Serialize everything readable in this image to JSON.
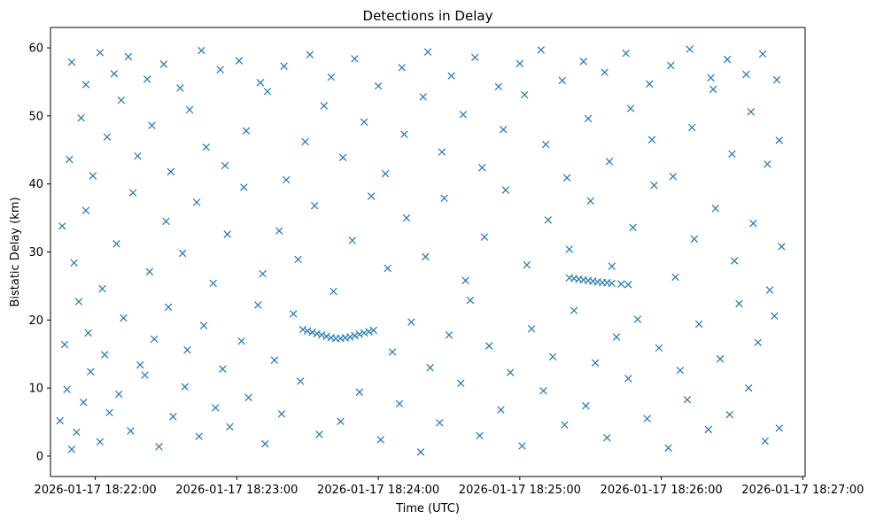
{
  "chart_data": {
    "type": "scatter",
    "title": "Detections in Delay",
    "xlabel": "Time (UTC)",
    "ylabel": "Bistatic Delay (km)",
    "marker": "x",
    "color": "#1f77b4",
    "grid": false,
    "legend": "none",
    "xlim": [
      "2026-01-17 18:21:41",
      "2026-01-17 18:27:01"
    ],
    "ylim": [
      -3,
      63
    ],
    "x_ticks": [
      "2026-01-17 18:22:00",
      "2026-01-17 18:23:00",
      "2026-01-17 18:24:00",
      "2026-01-17 18:25:00",
      "2026-01-17 18:26:00",
      "2026-01-17 18:27:00"
    ],
    "y_ticks": [
      "0",
      "10",
      "20",
      "30",
      "40",
      "50",
      "60"
    ],
    "tracks": [
      {
        "points": [
          [
            "2026-01-17 18:23:28",
            18.6
          ],
          [
            "2026-01-17 18:23:30",
            18.4
          ],
          [
            "2026-01-17 18:23:32",
            18.2
          ],
          [
            "2026-01-17 18:23:34",
            18.0
          ],
          [
            "2026-01-17 18:23:36",
            17.8
          ],
          [
            "2026-01-17 18:23:38",
            17.6
          ],
          [
            "2026-01-17 18:23:40",
            17.4
          ],
          [
            "2026-01-17 18:23:42",
            17.3
          ],
          [
            "2026-01-17 18:23:44",
            17.3
          ],
          [
            "2026-01-17 18:23:46",
            17.4
          ],
          [
            "2026-01-17 18:23:48",
            17.5
          ],
          [
            "2026-01-17 18:23:50",
            17.7
          ],
          [
            "2026-01-17 18:23:52",
            17.9
          ],
          [
            "2026-01-17 18:23:54",
            18.1
          ],
          [
            "2026-01-17 18:23:56",
            18.3
          ],
          [
            "2026-01-17 18:23:58",
            18.5
          ]
        ]
      },
      {
        "points": [
          [
            "2026-01-17 18:25:21",
            26.2
          ],
          [
            "2026-01-17 18:25:23",
            26.1
          ],
          [
            "2026-01-17 18:25:25",
            26.0
          ],
          [
            "2026-01-17 18:25:27",
            25.9
          ],
          [
            "2026-01-17 18:25:29",
            25.8
          ],
          [
            "2026-01-17 18:25:31",
            25.7
          ],
          [
            "2026-01-17 18:25:33",
            25.6
          ],
          [
            "2026-01-17 18:25:35",
            25.5
          ],
          [
            "2026-01-17 18:25:37",
            25.5
          ],
          [
            "2026-01-17 18:25:39",
            25.4
          ],
          [
            "2026-01-17 18:25:43",
            25.3
          ],
          [
            "2026-01-17 18:25:46",
            25.2
          ]
        ]
      }
    ],
    "scatter_points": [
      [
        "2026-01-17 18:21:45",
        5.2
      ],
      [
        "2026-01-17 18:21:48",
        9.8
      ],
      [
        "2026-01-17 18:21:50",
        1.0
      ],
      [
        "2026-01-17 18:21:52",
        3.5
      ],
      [
        "2026-01-17 18:21:55",
        7.9
      ],
      [
        "2026-01-17 18:21:58",
        12.4
      ],
      [
        "2026-01-17 18:22:02",
        2.1
      ],
      [
        "2026-01-17 18:22:06",
        6.4
      ],
      [
        "2026-01-17 18:22:10",
        9.1
      ],
      [
        "2026-01-17 18:22:15",
        3.7
      ],
      [
        "2026-01-17 18:22:21",
        11.9
      ],
      [
        "2026-01-17 18:22:27",
        1.4
      ],
      [
        "2026-01-17 18:22:33",
        5.8
      ],
      [
        "2026-01-17 18:22:38",
        10.2
      ],
      [
        "2026-01-17 18:22:44",
        2.9
      ],
      [
        "2026-01-17 18:22:51",
        7.1
      ],
      [
        "2026-01-17 18:22:57",
        4.3
      ],
      [
        "2026-01-17 18:23:05",
        8.6
      ],
      [
        "2026-01-17 18:23:12",
        1.8
      ],
      [
        "2026-01-17 18:23:19",
        6.2
      ],
      [
        "2026-01-17 18:23:27",
        11.0
      ],
      [
        "2026-01-17 18:23:35",
        3.2
      ],
      [
        "2026-01-17 18:23:44",
        5.1
      ],
      [
        "2026-01-17 18:23:52",
        9.4
      ],
      [
        "2026-01-17 18:24:01",
        2.4
      ],
      [
        "2026-01-17 18:24:09",
        7.7
      ],
      [
        "2026-01-17 18:24:18",
        0.6
      ],
      [
        "2026-01-17 18:24:26",
        4.9
      ],
      [
        "2026-01-17 18:24:35",
        10.7
      ],
      [
        "2026-01-17 18:24:43",
        3.0
      ],
      [
        "2026-01-17 18:24:52",
        6.8
      ],
      [
        "2026-01-17 18:25:01",
        1.5
      ],
      [
        "2026-01-17 18:25:10",
        9.6
      ],
      [
        "2026-01-17 18:25:19",
        4.6
      ],
      [
        "2026-01-17 18:25:28",
        7.4
      ],
      [
        "2026-01-17 18:25:37",
        2.7
      ],
      [
        "2026-01-17 18:25:46",
        11.4
      ],
      [
        "2026-01-17 18:25:54",
        5.5
      ],
      [
        "2026-01-17 18:26:03",
        1.2
      ],
      [
        "2026-01-17 18:26:11",
        8.3
      ],
      [
        "2026-01-17 18:26:20",
        3.9
      ],
      [
        "2026-01-17 18:26:29",
        6.1
      ],
      [
        "2026-01-17 18:26:37",
        10.0
      ],
      [
        "2026-01-17 18:26:44",
        2.2
      ],
      [
        "2026-01-17 18:26:50",
        4.1
      ],
      [
        "2026-01-17 18:21:47",
        16.4
      ],
      [
        "2026-01-17 18:21:53",
        22.7
      ],
      [
        "2026-01-17 18:21:57",
        18.1
      ],
      [
        "2026-01-17 18:22:04",
        14.9
      ],
      [
        "2026-01-17 18:22:12",
        20.3
      ],
      [
        "2026-01-17 18:22:19",
        13.4
      ],
      [
        "2026-01-17 18:22:25",
        17.2
      ],
      [
        "2026-01-17 18:22:31",
        21.9
      ],
      [
        "2026-01-17 18:22:39",
        15.6
      ],
      [
        "2026-01-17 18:22:46",
        19.2
      ],
      [
        "2026-01-17 18:22:54",
        12.8
      ],
      [
        "2026-01-17 18:23:02",
        16.9
      ],
      [
        "2026-01-17 18:23:09",
        22.2
      ],
      [
        "2026-01-17 18:23:16",
        14.1
      ],
      [
        "2026-01-17 18:23:24",
        20.9
      ],
      [
        "2026-01-17 18:24:06",
        15.3
      ],
      [
        "2026-01-17 18:24:14",
        19.7
      ],
      [
        "2026-01-17 18:24:22",
        13.0
      ],
      [
        "2026-01-17 18:24:30",
        17.8
      ],
      [
        "2026-01-17 18:24:39",
        22.9
      ],
      [
        "2026-01-17 18:24:47",
        16.2
      ],
      [
        "2026-01-17 18:24:56",
        12.3
      ],
      [
        "2026-01-17 18:25:05",
        18.7
      ],
      [
        "2026-01-17 18:25:14",
        14.6
      ],
      [
        "2026-01-17 18:25:23",
        21.4
      ],
      [
        "2026-01-17 18:25:32",
        13.7
      ],
      [
        "2026-01-17 18:25:41",
        17.5
      ],
      [
        "2026-01-17 18:25:50",
        20.1
      ],
      [
        "2026-01-17 18:25:59",
        15.9
      ],
      [
        "2026-01-17 18:26:08",
        12.6
      ],
      [
        "2026-01-17 18:26:16",
        19.4
      ],
      [
        "2026-01-17 18:26:25",
        14.3
      ],
      [
        "2026-01-17 18:26:33",
        22.4
      ],
      [
        "2026-01-17 18:26:41",
        16.7
      ],
      [
        "2026-01-17 18:26:48",
        20.6
      ],
      [
        "2026-01-17 18:21:46",
        33.8
      ],
      [
        "2026-01-17 18:21:51",
        28.4
      ],
      [
        "2026-01-17 18:21:56",
        36.1
      ],
      [
        "2026-01-17 18:22:03",
        24.6
      ],
      [
        "2026-01-17 18:22:09",
        31.2
      ],
      [
        "2026-01-17 18:22:16",
        38.7
      ],
      [
        "2026-01-17 18:22:23",
        27.1
      ],
      [
        "2026-01-17 18:22:30",
        34.5
      ],
      [
        "2026-01-17 18:22:37",
        29.8
      ],
      [
        "2026-01-17 18:22:43",
        37.3
      ],
      [
        "2026-01-17 18:22:50",
        25.4
      ],
      [
        "2026-01-17 18:22:56",
        32.6
      ],
      [
        "2026-01-17 18:23:03",
        39.5
      ],
      [
        "2026-01-17 18:23:11",
        26.8
      ],
      [
        "2026-01-17 18:23:18",
        33.1
      ],
      [
        "2026-01-17 18:23:26",
        28.9
      ],
      [
        "2026-01-17 18:23:33",
        36.8
      ],
      [
        "2026-01-17 18:23:41",
        24.2
      ],
      [
        "2026-01-17 18:23:49",
        31.7
      ],
      [
        "2026-01-17 18:23:57",
        38.2
      ],
      [
        "2026-01-17 18:24:04",
        27.6
      ],
      [
        "2026-01-17 18:24:12",
        35.0
      ],
      [
        "2026-01-17 18:24:20",
        29.3
      ],
      [
        "2026-01-17 18:24:28",
        37.9
      ],
      [
        "2026-01-17 18:24:37",
        25.8
      ],
      [
        "2026-01-17 18:24:45",
        32.2
      ],
      [
        "2026-01-17 18:24:54",
        39.1
      ],
      [
        "2026-01-17 18:25:03",
        28.1
      ],
      [
        "2026-01-17 18:25:12",
        34.7
      ],
      [
        "2026-01-17 18:25:21",
        30.4
      ],
      [
        "2026-01-17 18:25:30",
        37.5
      ],
      [
        "2026-01-17 18:25:39",
        27.9
      ],
      [
        "2026-01-17 18:25:48",
        33.6
      ],
      [
        "2026-01-17 18:25:57",
        39.8
      ],
      [
        "2026-01-17 18:26:06",
        26.3
      ],
      [
        "2026-01-17 18:26:14",
        31.9
      ],
      [
        "2026-01-17 18:26:23",
        36.4
      ],
      [
        "2026-01-17 18:26:31",
        28.7
      ],
      [
        "2026-01-17 18:26:39",
        34.2
      ],
      [
        "2026-01-17 18:26:46",
        24.4
      ],
      [
        "2026-01-17 18:26:51",
        30.8
      ],
      [
        "2026-01-17 18:21:49",
        43.6
      ],
      [
        "2026-01-17 18:21:54",
        49.7
      ],
      [
        "2026-01-17 18:21:59",
        41.2
      ],
      [
        "2026-01-17 18:22:05",
        46.9
      ],
      [
        "2026-01-17 18:22:11",
        52.3
      ],
      [
        "2026-01-17 18:22:18",
        44.1
      ],
      [
        "2026-01-17 18:22:24",
        48.6
      ],
      [
        "2026-01-17 18:22:32",
        41.8
      ],
      [
        "2026-01-17 18:22:40",
        50.9
      ],
      [
        "2026-01-17 18:22:47",
        45.4
      ],
      [
        "2026-01-17 18:22:55",
        42.7
      ],
      [
        "2026-01-17 18:23:04",
        47.8
      ],
      [
        "2026-01-17 18:23:13",
        53.6
      ],
      [
        "2026-01-17 18:23:21",
        40.6
      ],
      [
        "2026-01-17 18:23:29",
        46.2
      ],
      [
        "2026-01-17 18:23:37",
        51.5
      ],
      [
        "2026-01-17 18:23:45",
        43.9
      ],
      [
        "2026-01-17 18:23:54",
        49.1
      ],
      [
        "2026-01-17 18:24:03",
        41.5
      ],
      [
        "2026-01-17 18:24:11",
        47.3
      ],
      [
        "2026-01-17 18:24:19",
        52.8
      ],
      [
        "2026-01-17 18:24:27",
        44.7
      ],
      [
        "2026-01-17 18:24:36",
        50.2
      ],
      [
        "2026-01-17 18:24:44",
        42.4
      ],
      [
        "2026-01-17 18:24:53",
        48.0
      ],
      [
        "2026-01-17 18:25:02",
        53.1
      ],
      [
        "2026-01-17 18:25:11",
        45.8
      ],
      [
        "2026-01-17 18:25:20",
        40.9
      ],
      [
        "2026-01-17 18:25:29",
        49.6
      ],
      [
        "2026-01-17 18:25:38",
        43.3
      ],
      [
        "2026-01-17 18:25:47",
        51.1
      ],
      [
        "2026-01-17 18:25:56",
        46.5
      ],
      [
        "2026-01-17 18:26:05",
        41.1
      ],
      [
        "2026-01-17 18:26:13",
        48.3
      ],
      [
        "2026-01-17 18:26:22",
        53.9
      ],
      [
        "2026-01-17 18:26:30",
        44.4
      ],
      [
        "2026-01-17 18:26:38",
        50.6
      ],
      [
        "2026-01-17 18:26:45",
        42.9
      ],
      [
        "2026-01-17 18:26:50",
        46.4
      ],
      [
        "2026-01-17 18:21:50",
        57.9
      ],
      [
        "2026-01-17 18:21:56",
        54.6
      ],
      [
        "2026-01-17 18:22:02",
        59.3
      ],
      [
        "2026-01-17 18:22:08",
        56.2
      ],
      [
        "2026-01-17 18:22:14",
        58.7
      ],
      [
        "2026-01-17 18:22:22",
        55.4
      ],
      [
        "2026-01-17 18:22:29",
        57.6
      ],
      [
        "2026-01-17 18:22:36",
        54.1
      ],
      [
        "2026-01-17 18:22:45",
        59.6
      ],
      [
        "2026-01-17 18:22:53",
        56.8
      ],
      [
        "2026-01-17 18:23:01",
        58.1
      ],
      [
        "2026-01-17 18:23:10",
        54.9
      ],
      [
        "2026-01-17 18:23:20",
        57.3
      ],
      [
        "2026-01-17 18:23:31",
        59.0
      ],
      [
        "2026-01-17 18:23:40",
        55.7
      ],
      [
        "2026-01-17 18:23:50",
        58.4
      ],
      [
        "2026-01-17 18:24:00",
        54.4
      ],
      [
        "2026-01-17 18:24:10",
        57.1
      ],
      [
        "2026-01-17 18:24:21",
        59.4
      ],
      [
        "2026-01-17 18:24:31",
        55.9
      ],
      [
        "2026-01-17 18:24:41",
        58.6
      ],
      [
        "2026-01-17 18:24:51",
        54.3
      ],
      [
        "2026-01-17 18:25:00",
        57.7
      ],
      [
        "2026-01-17 18:25:09",
        59.7
      ],
      [
        "2026-01-17 18:25:18",
        55.2
      ],
      [
        "2026-01-17 18:25:27",
        58.0
      ],
      [
        "2026-01-17 18:25:36",
        56.4
      ],
      [
        "2026-01-17 18:25:45",
        59.2
      ],
      [
        "2026-01-17 18:25:55",
        54.7
      ],
      [
        "2026-01-17 18:26:04",
        57.4
      ],
      [
        "2026-01-17 18:26:12",
        59.8
      ],
      [
        "2026-01-17 18:26:21",
        55.6
      ],
      [
        "2026-01-17 18:26:28",
        58.3
      ],
      [
        "2026-01-17 18:26:36",
        56.1
      ],
      [
        "2026-01-17 18:26:43",
        59.1
      ],
      [
        "2026-01-17 18:26:49",
        55.3
      ]
    ]
  }
}
